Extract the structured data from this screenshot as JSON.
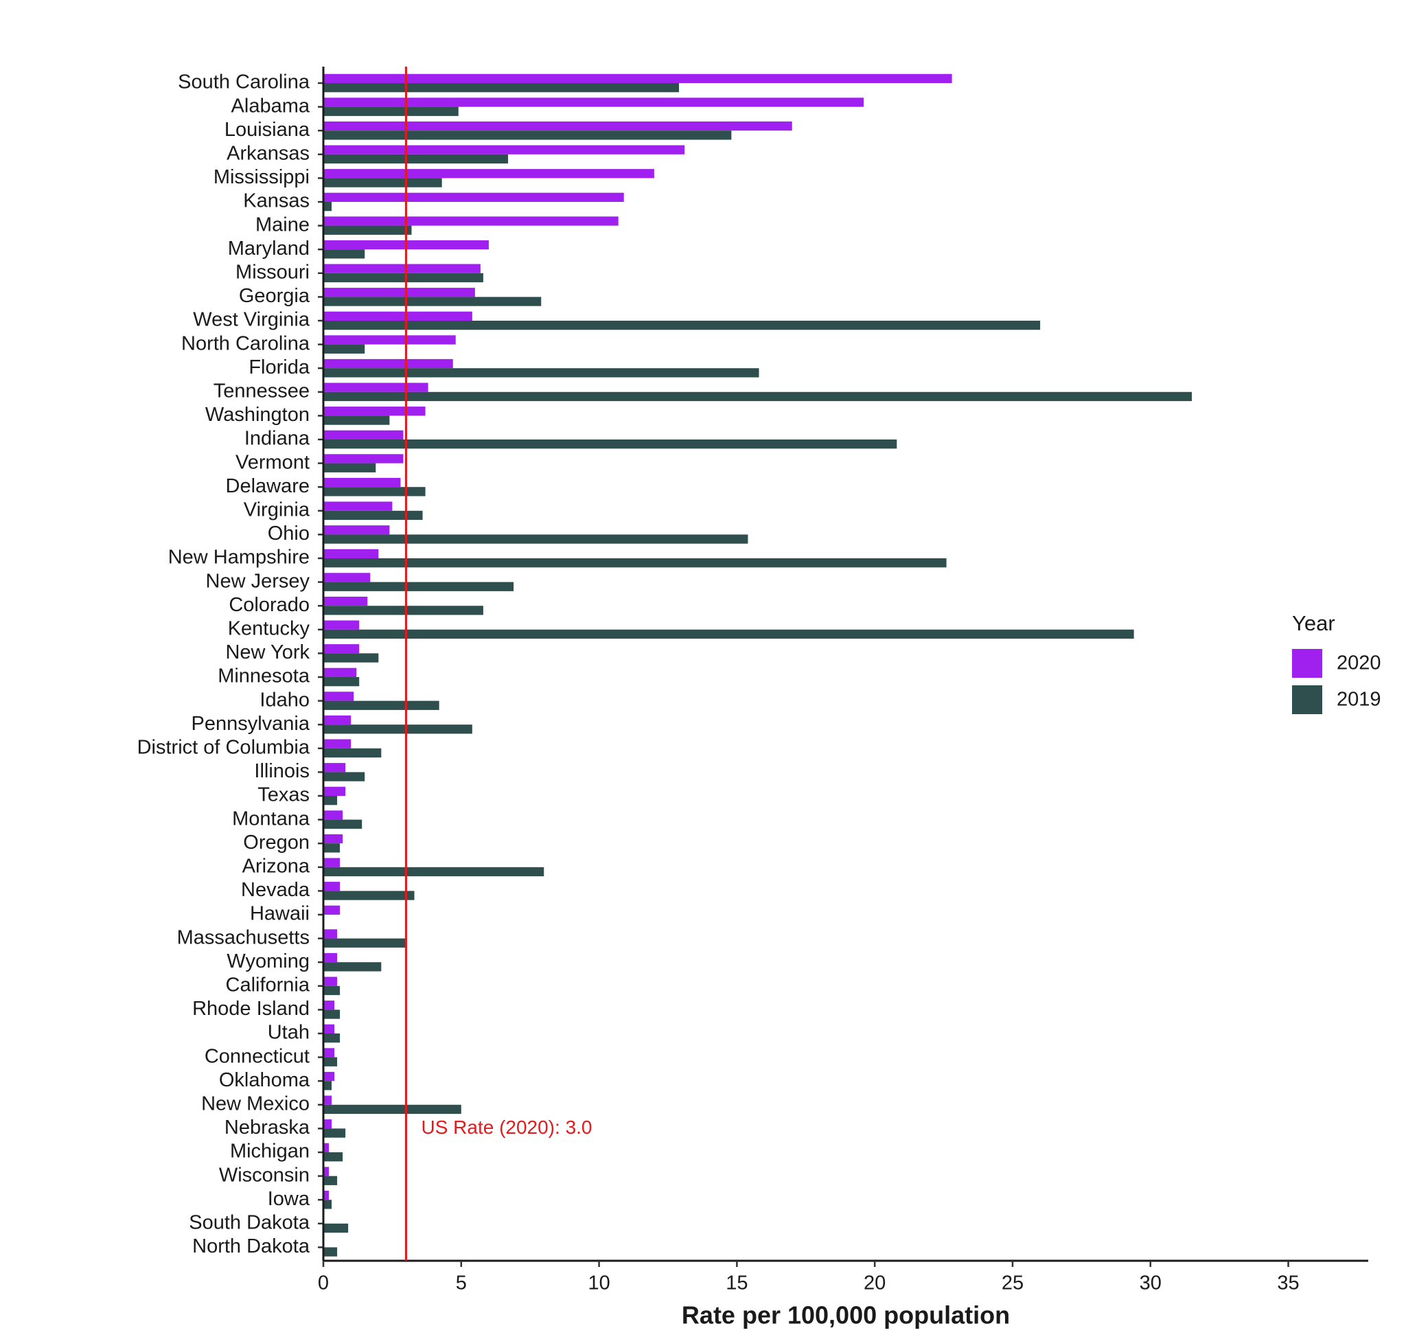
{
  "chart_data": {
    "type": "bar",
    "orientation": "horizontal",
    "x_label": "Rate per 100,000 population",
    "legend_title": "Year",
    "legend_position": "right",
    "categories": [
      "South Carolina",
      "Alabama",
      "Louisiana",
      "Arkansas",
      "Mississippi",
      "Kansas",
      "Maine",
      "Maryland",
      "Missouri",
      "Georgia",
      "West Virginia",
      "North Carolina",
      "Florida",
      "Tennessee",
      "Washington",
      "Indiana",
      "Vermont",
      "Delaware",
      "Virginia",
      "Ohio",
      "New Hampshire",
      "New Jersey",
      "Colorado",
      "Kentucky",
      "New York",
      "Minnesota",
      "Idaho",
      "Pennsylvania",
      "District of Columbia",
      "Illinois",
      "Texas",
      "Montana",
      "Oregon",
      "Arizona",
      "Nevada",
      "Hawaii",
      "Massachusetts",
      "Wyoming",
      "California",
      "Rhode Island",
      "Utah",
      "Connecticut",
      "Oklahoma",
      "New Mexico",
      "Nebraska",
      "Michigan",
      "Wisconsin",
      "Iowa",
      "South Dakota",
      "North Dakota"
    ],
    "series": [
      {
        "name": "2020",
        "color": "#a020f0",
        "values": [
          22.8,
          19.6,
          17.0,
          13.1,
          12.0,
          10.9,
          10.7,
          6.0,
          5.7,
          5.5,
          5.4,
          4.8,
          4.7,
          3.8,
          3.7,
          2.9,
          2.9,
          2.8,
          2.5,
          2.4,
          2.0,
          1.7,
          1.6,
          1.3,
          1.3,
          1.2,
          1.1,
          1.0,
          1.0,
          0.8,
          0.8,
          0.7,
          0.7,
          0.6,
          0.6,
          0.6,
          0.5,
          0.5,
          0.5,
          0.4,
          0.4,
          0.4,
          0.4,
          0.3,
          0.3,
          0.2,
          0.2,
          0.2,
          0,
          0
        ]
      },
      {
        "name": "2019",
        "color": "#2f4f4f",
        "values": [
          12.9,
          4.9,
          14.8,
          6.7,
          4.3,
          0.3,
          3.2,
          1.5,
          5.8,
          7.9,
          26.0,
          1.5,
          15.8,
          31.5,
          2.4,
          20.8,
          1.9,
          3.7,
          3.6,
          15.4,
          22.6,
          6.9,
          5.8,
          29.4,
          2.0,
          1.3,
          4.2,
          5.4,
          2.1,
          1.5,
          0.5,
          1.4,
          0.6,
          8.0,
          3.3,
          0,
          3.0,
          2.1,
          0.6,
          0.6,
          0.6,
          0.5,
          0.3,
          5.0,
          0.8,
          0.7,
          0.5,
          0.3,
          0.9,
          0.5
        ]
      }
    ],
    "xlim": [
      0,
      37.9
    ],
    "xticks": [
      0,
      5,
      10,
      15,
      20,
      25,
      30,
      35
    ],
    "grid": false,
    "reference_line": {
      "value": 3.0,
      "color": "#e31a1c",
      "label": "US Rate (2020): 3.0"
    }
  }
}
